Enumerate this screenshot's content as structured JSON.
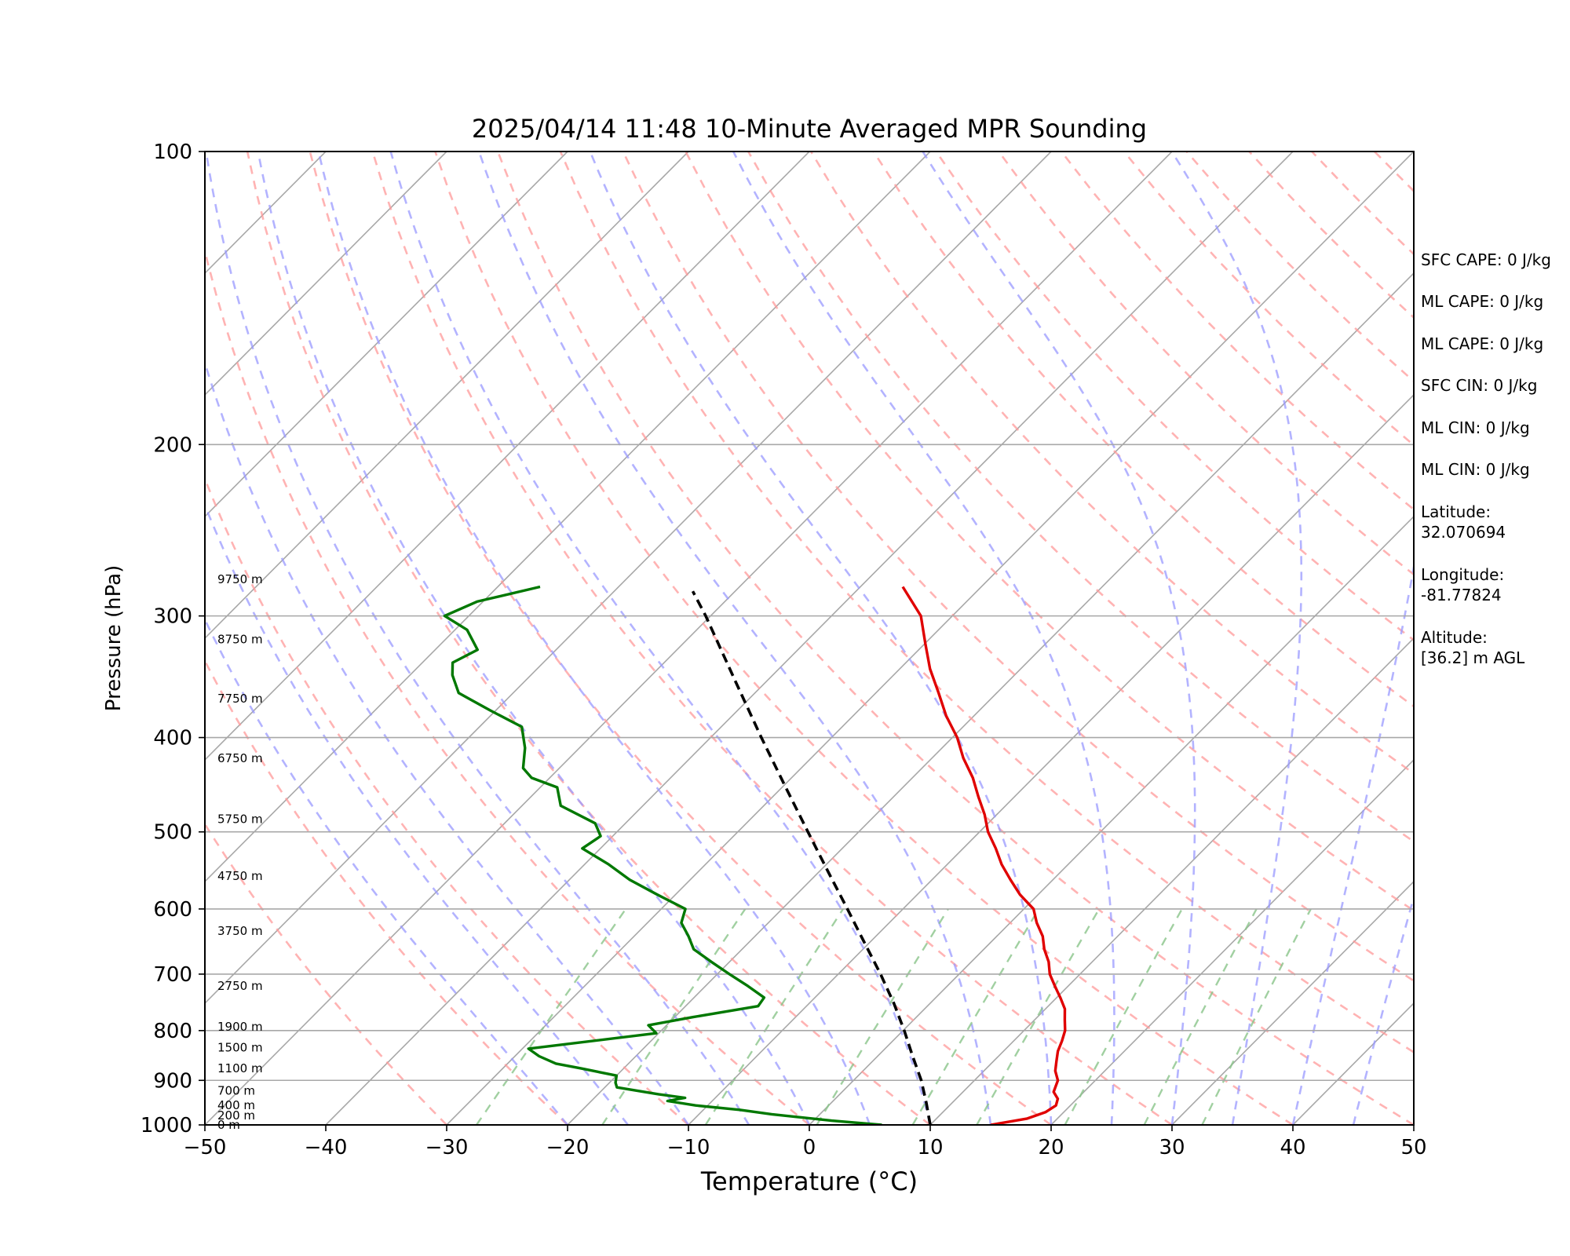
{
  "chart_data": {
    "type": "line",
    "title": "2025/04/14 11:48 10-Minute Averaged MPR Sounding",
    "xlabel": "Temperature (°C)",
    "ylabel": "Pressure (hPa)",
    "xlim": [
      -50,
      50
    ],
    "ylim": [
      1000,
      100
    ],
    "y_scale": "log",
    "skew": "skew-T log-P",
    "x_ticks": [
      "−50",
      "−40",
      "−30",
      "−20",
      "−10",
      "0",
      "10",
      "20",
      "30",
      "40",
      "50"
    ],
    "y_ticks": [
      "100",
      "200",
      "300",
      "400",
      "500",
      "600",
      "700",
      "800",
      "900",
      "1000"
    ],
    "grid": true,
    "series": [
      {
        "kind": "temperature",
        "color": "#e00000",
        "points": [
          [
            1000,
            15.0
          ],
          [
            985,
            17.5
          ],
          [
            970,
            18.5
          ],
          [
            955,
            18.8
          ],
          [
            940,
            18.4
          ],
          [
            925,
            17.5
          ],
          [
            900,
            16.9
          ],
          [
            880,
            15.9
          ],
          [
            860,
            15.2
          ],
          [
            840,
            14.5
          ],
          [
            820,
            14.0
          ],
          [
            800,
            13.4
          ],
          [
            780,
            12.5
          ],
          [
            760,
            11.6
          ],
          [
            740,
            10.3
          ],
          [
            720,
            8.9
          ],
          [
            700,
            7.5
          ],
          [
            680,
            6.4
          ],
          [
            660,
            5.0
          ],
          [
            640,
            3.8
          ],
          [
            620,
            2.2
          ],
          [
            600,
            0.8
          ],
          [
            580,
            -1.5
          ],
          [
            560,
            -3.5
          ],
          [
            540,
            -5.5
          ],
          [
            520,
            -7.3
          ],
          [
            500,
            -9.3
          ],
          [
            480,
            -11.0
          ],
          [
            460,
            -13.0
          ],
          [
            440,
            -15.0
          ],
          [
            420,
            -17.4
          ],
          [
            400,
            -19.6
          ],
          [
            380,
            -22.3
          ],
          [
            360,
            -24.8
          ],
          [
            340,
            -27.5
          ],
          [
            320,
            -30.0
          ],
          [
            300,
            -32.6
          ],
          [
            280,
            -36.5
          ]
        ]
      },
      {
        "kind": "dewpoint",
        "color": "#007800",
        "points": [
          [
            1000,
            6.0
          ],
          [
            990,
            1.5
          ],
          [
            975,
            -4.0
          ],
          [
            965,
            -7.0
          ],
          [
            955,
            -11.0
          ],
          [
            945,
            -13.7
          ],
          [
            938,
            -12.5
          ],
          [
            930,
            -15.0
          ],
          [
            915,
            -19.0
          ],
          [
            905,
            -19.5
          ],
          [
            890,
            -20.0
          ],
          [
            875,
            -23.5
          ],
          [
            865,
            -26.0
          ],
          [
            850,
            -28.0
          ],
          [
            835,
            -29.5
          ],
          [
            805,
            -20.2
          ],
          [
            790,
            -21.5
          ],
          [
            775,
            -18.5
          ],
          [
            755,
            -14.0
          ],
          [
            740,
            -14.2
          ],
          [
            720,
            -16.5
          ],
          [
            700,
            -19.0
          ],
          [
            680,
            -21.5
          ],
          [
            660,
            -24.0
          ],
          [
            640,
            -25.5
          ],
          [
            620,
            -27.2
          ],
          [
            600,
            -28.0
          ],
          [
            580,
            -31.5
          ],
          [
            560,
            -35.0
          ],
          [
            540,
            -38.0
          ],
          [
            520,
            -41.5
          ],
          [
            505,
            -41.0
          ],
          [
            490,
            -42.5
          ],
          [
            470,
            -46.8
          ],
          [
            450,
            -48.6
          ],
          [
            440,
            -51.5
          ],
          [
            430,
            -53.0
          ],
          [
            410,
            -54.5
          ],
          [
            390,
            -56.5
          ],
          [
            375,
            -60.5
          ],
          [
            360,
            -64.5
          ],
          [
            345,
            -66.5
          ],
          [
            335,
            -67.5
          ],
          [
            325,
            -66.5
          ],
          [
            310,
            -69.0
          ],
          [
            300,
            -72.0
          ],
          [
            290,
            -70.5
          ],
          [
            280,
            -66.5
          ]
        ]
      },
      {
        "kind": "parcel",
        "color": "#000000",
        "dash": true,
        "points": [
          [
            1000,
            10.0
          ],
          [
            950,
            7.9
          ],
          [
            900,
            5.6
          ],
          [
            850,
            2.9
          ],
          [
            800,
            0.1
          ],
          [
            750,
            -3.0
          ],
          [
            700,
            -6.5
          ],
          [
            650,
            -10.4
          ],
          [
            600,
            -14.6
          ],
          [
            550,
            -19.2
          ],
          [
            500,
            -24.2
          ],
          [
            450,
            -29.7
          ],
          [
            400,
            -35.8
          ],
          [
            350,
            -42.6
          ],
          [
            300,
            -50.4
          ],
          [
            283,
            -53.5
          ]
        ]
      }
    ],
    "background_lines": {
      "dry_adiabats": {
        "color": "#ff9a9a",
        "dash": true
      },
      "moist_adiabats": {
        "color": "#9a9aff",
        "dash": true
      },
      "mixing_ratio": {
        "color": "#8ac48a",
        "dash": true
      }
    },
    "height_labels": [
      {
        "p": 1000,
        "label": "0 m"
      },
      {
        "p": 978,
        "label": "200 m"
      },
      {
        "p": 955,
        "label": "400 m"
      },
      {
        "p": 922,
        "label": "700 m"
      },
      {
        "p": 875,
        "label": "1100 m"
      },
      {
        "p": 833,
        "label": "1500 m"
      },
      {
        "p": 793,
        "label": "1900 m"
      },
      {
        "p": 720,
        "label": "2750 m"
      },
      {
        "p": 632,
        "label": "3750 m"
      },
      {
        "p": 555,
        "label": "4750 m"
      },
      {
        "p": 485,
        "label": "5750 m"
      },
      {
        "p": 420,
        "label": "6750 m"
      },
      {
        "p": 365,
        "label": "7750 m"
      },
      {
        "p": 317,
        "label": "8750 m"
      },
      {
        "p": 275,
        "label": "9750 m"
      }
    ]
  },
  "side_panel": {
    "sfc_cape": "SFC CAPE: 0 J/kg",
    "ml_cape_1": "ML CAPE: 0 J/kg",
    "ml_cape_2": "ML CAPE: 0 J/kg",
    "sfc_cin": "SFC CIN: 0 J/kg",
    "ml_cin_1": "ML CIN: 0 J/kg",
    "ml_cin_2": "ML CIN: 0 J/kg",
    "latitude_label": "Latitude:",
    "latitude_value": "32.070694",
    "longitude_label": "Longitude:",
    "longitude_value": "-81.77824",
    "altitude_label": "Altitude:",
    "altitude_value": "[36.2] m AGL"
  }
}
